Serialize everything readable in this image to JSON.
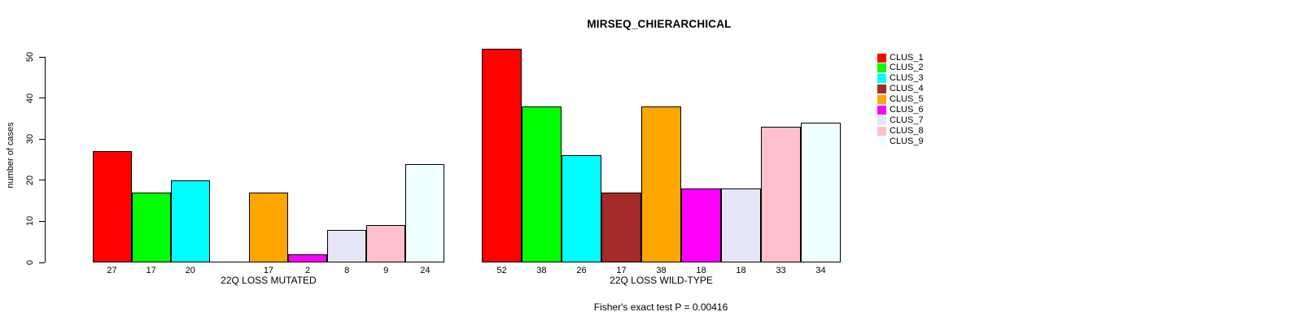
{
  "title": "MIRSEQ_CHIERARCHICAL",
  "footer": "Fisher's exact test P = 0.00416",
  "y_axis": {
    "label": "number of cases",
    "ticks": [
      0,
      10,
      20,
      30,
      40,
      50
    ]
  },
  "chart_data": {
    "type": "bar",
    "title": "MIRSEQ_CHIERARCHICAL",
    "ylabel": "number of cases",
    "ylim": [
      0,
      50
    ],
    "grid": false,
    "legend_position": "right",
    "categories": [
      "CLUS_1",
      "CLUS_2",
      "CLUS_3",
      "CLUS_4",
      "CLUS_5",
      "CLUS_6",
      "CLUS_7",
      "CLUS_8",
      "CLUS_9"
    ],
    "colors": [
      "#FF0000",
      "#00FF00",
      "#00FFFF",
      "#A52A2A",
      "#FFA500",
      "#FF00FF",
      "#E6E6FA",
      "#FFC0CB",
      "#F0FFFF"
    ],
    "groups": [
      {
        "label": "22Q LOSS MUTATED",
        "values": [
          27,
          17,
          20,
          0,
          17,
          2,
          8,
          9,
          24
        ],
        "value_labels": [
          "27",
          "17",
          "20",
          "",
          "17",
          "2",
          "8",
          "9",
          "24"
        ]
      },
      {
        "label": "22Q LOSS WILD-TYPE",
        "values": [
          52,
          38,
          26,
          17,
          38,
          18,
          18,
          33,
          34
        ],
        "value_labels": [
          "52",
          "38",
          "26",
          "17",
          "38",
          "18",
          "18",
          "33",
          "34"
        ]
      }
    ],
    "annotation": "Fisher's exact test P = 0.00416"
  }
}
